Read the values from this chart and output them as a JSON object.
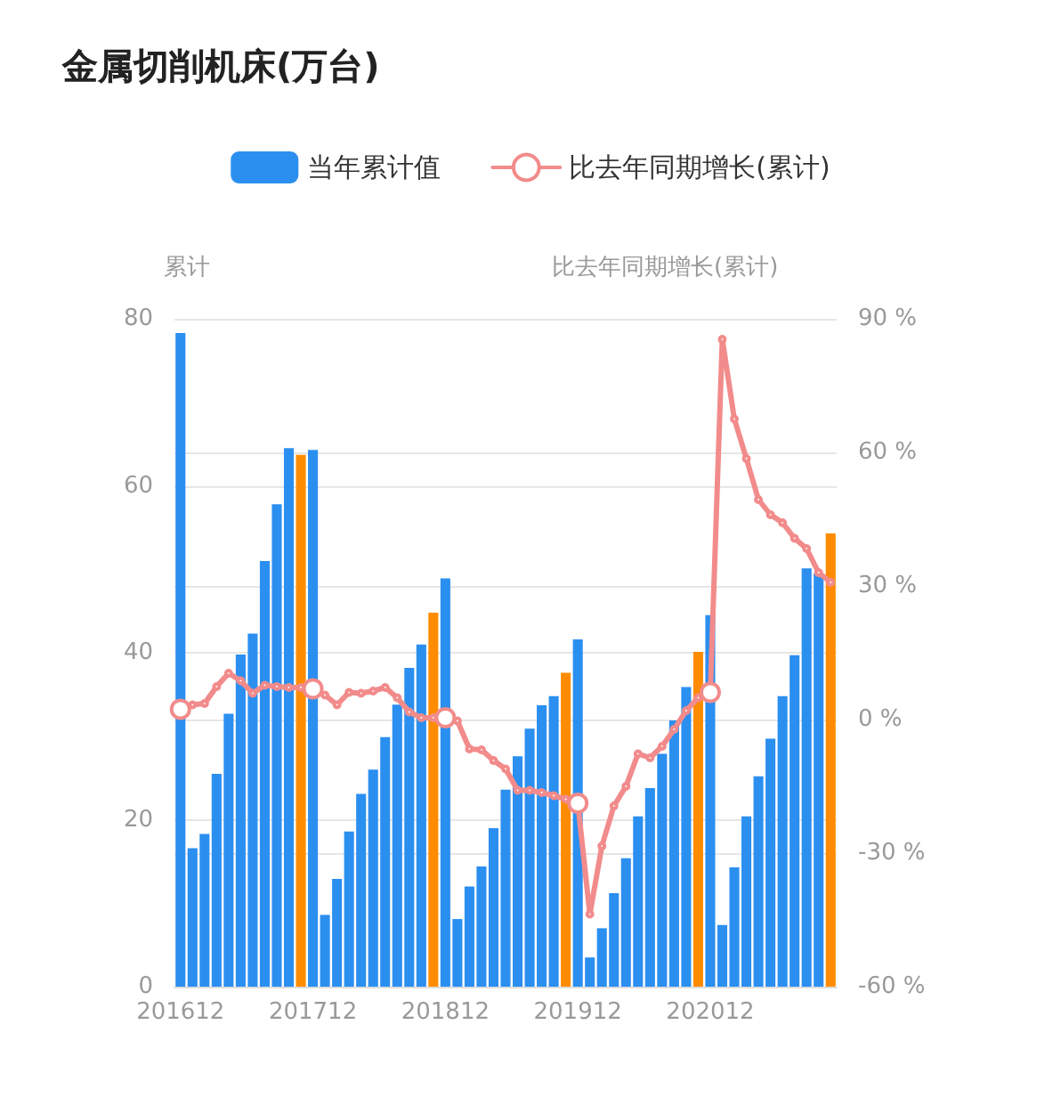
{
  "chart_data": {
    "type": "bar",
    "title": "金属切削机床(万台)",
    "ylabel": "累计",
    "y2label": "比去年同期增长(累计)",
    "categories": [
      "201612",
      null,
      null,
      null,
      null,
      null,
      null,
      null,
      null,
      null,
      null,
      "201712",
      null,
      null,
      null,
      null,
      null,
      null,
      null,
      null,
      null,
      null,
      "201812",
      null,
      null,
      null,
      null,
      null,
      null,
      null,
      null,
      null,
      null,
      "201912",
      null,
      null,
      null,
      null,
      null,
      null,
      null,
      null,
      null,
      null,
      "202012",
      null,
      null,
      null,
      null,
      null,
      null,
      null,
      null,
      null,
      null
    ],
    "series": [
      {
        "name": "当年累计值",
        "color": "#2b8ff0",
        "colors": [
          "#2b8ff0",
          "#2b8ff0",
          "#2b8ff0",
          "#2b8ff0",
          "#2b8ff0",
          "#2b8ff0",
          "#2b8ff0",
          "#2b8ff0",
          "#2b8ff0",
          "#2b8ff0",
          "#ff8c00",
          "#2b8ff0",
          "#2b8ff0",
          "#2b8ff0",
          "#2b8ff0",
          "#2b8ff0",
          "#2b8ff0",
          "#2b8ff0",
          "#2b8ff0",
          "#2b8ff0",
          "#2b8ff0",
          "#ff8c00",
          "#2b8ff0",
          "#2b8ff0",
          "#2b8ff0",
          "#2b8ff0",
          "#2b8ff0",
          "#2b8ff0",
          "#2b8ff0",
          "#2b8ff0",
          "#2b8ff0",
          "#2b8ff0",
          "#ff8c00",
          "#2b8ff0",
          "#2b8ff0",
          "#2b8ff0",
          "#2b8ff0",
          "#2b8ff0",
          "#2b8ff0",
          "#2b8ff0",
          "#2b8ff0",
          "#2b8ff0",
          "#2b8ff0",
          "#ff8c00",
          "#2b8ff0",
          "#2b8ff0",
          "#2b8ff0",
          "#2b8ff0",
          "#2b8ff0",
          "#2b8ff0",
          "#2b8ff0",
          "#2b8ff0",
          "#2b8ff0",
          "#2b8ff0",
          "#ff8c00"
        ],
        "values": [
          78.3,
          16.6,
          18.3,
          25.5,
          32.7,
          39.8,
          42.3,
          51.0,
          57.8,
          64.5,
          63.7,
          64.3,
          8.6,
          12.9,
          18.6,
          23.1,
          26.0,
          29.9,
          33.8,
          38.2,
          41.0,
          44.8,
          48.9,
          8.1,
          12.0,
          14.4,
          19.0,
          23.6,
          27.6,
          30.9,
          33.7,
          34.8,
          37.6,
          41.6,
          3.5,
          7.0,
          11.2,
          15.4,
          20.4,
          23.8,
          27.9,
          31.9,
          35.9,
          40.1,
          44.5,
          7.4,
          14.3,
          20.4,
          25.2,
          29.7,
          34.8,
          39.7,
          50.1,
          49.5,
          54.3
        ]
      },
      {
        "name": "比去年同期增长(累计)",
        "type": "line",
        "axis": "y2",
        "color": "#f28b8b",
        "values": [
          2.3,
          3.3,
          3.6,
          7.4,
          10.4,
          8.7,
          5.9,
          7.7,
          7.4,
          7.2,
          7.2,
          6.9,
          5.5,
          3.3,
          6.1,
          5.9,
          6.4,
          7.2,
          4.9,
          1.7,
          0.4,
          0.4,
          0.4,
          -0.3,
          -6.6,
          -6.8,
          -9.2,
          -11.1,
          -15.9,
          -15.9,
          -16.4,
          -17.1,
          -17.9,
          -18.8,
          -43.7,
          -28.4,
          -19.4,
          -15.0,
          -7.7,
          -8.6,
          -6.0,
          -2.2,
          2.0,
          4.9,
          6.1,
          85.4,
          67.5,
          58.6,
          49.4,
          46.0,
          44.2,
          40.7,
          38.4,
          33.0,
          30.8
        ]
      }
    ],
    "ylim": [
      0,
      80
    ],
    "yticks": [
      0,
      20,
      40,
      60,
      80
    ],
    "y2lim": [
      -60,
      90
    ],
    "y2ticks": [
      {
        "value": -60,
        "label": "-60 %"
      },
      {
        "value": -30,
        "label": "-30 %"
      },
      {
        "value": 0,
        "label": "0 %"
      },
      {
        "value": 30,
        "label": "30 %"
      },
      {
        "value": 60,
        "label": "60 %"
      },
      {
        "value": 90,
        "label": "90 %"
      }
    ],
    "grid": "y",
    "legend": "top",
    "marker": "circle",
    "line_style": "solid"
  }
}
